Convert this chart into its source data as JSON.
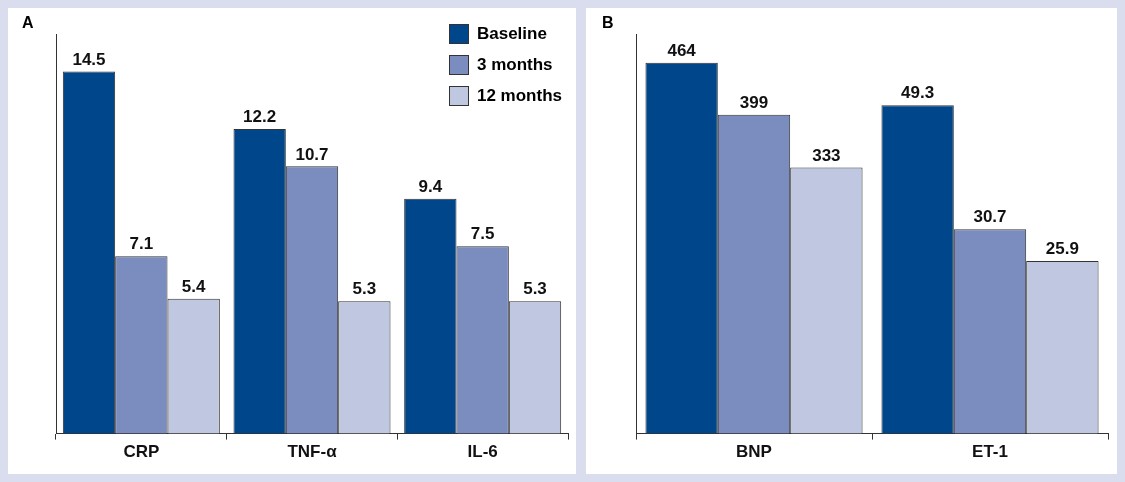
{
  "chart_data": [
    {
      "type": "bar",
      "title": "A",
      "categories": [
        "CRP",
        "TNF-α",
        "IL-6"
      ],
      "data_labels": true,
      "tick_labels": "x",
      "grid": false,
      "legend": "top right",
      "series": [
        {
          "name": "Baseline",
          "color": "#00468b",
          "values": [
            14.5,
            12.2,
            9.4
          ]
        },
        {
          "name": "3 months",
          "color": "#7b8dbf",
          "values": [
            7.1,
            10.7,
            7.5
          ]
        },
        {
          "name": "12 months",
          "color": "#c0c7e0",
          "values": [
            5.4,
            5.3,
            5.3
          ]
        }
      ]
    },
    {
      "type": "bar",
      "title": "B",
      "categories": [
        "BNP",
        "ET-1"
      ],
      "data_labels": true,
      "tick_labels": "x",
      "grid": false,
      "series": [
        {
          "color": "#00468b",
          "values": [
            464,
            null
          ]
        },
        {
          "color": "#7b8dbf",
          "values": [
            399,
            null
          ]
        },
        {
          "color": "#c0c7e0",
          "values": [
            333,
            null
          ]
        },
        {
          "color": "#00468b",
          "values": [
            null,
            49.3
          ],
          "axis": "y2"
        },
        {
          "color": "#7b8dbf",
          "values": [
            null,
            30.7
          ],
          "axis": "y2"
        },
        {
          "color": "#c0c7e0",
          "values": [
            null,
            25.9
          ],
          "axis": "y2"
        }
      ]
    }
  ]
}
